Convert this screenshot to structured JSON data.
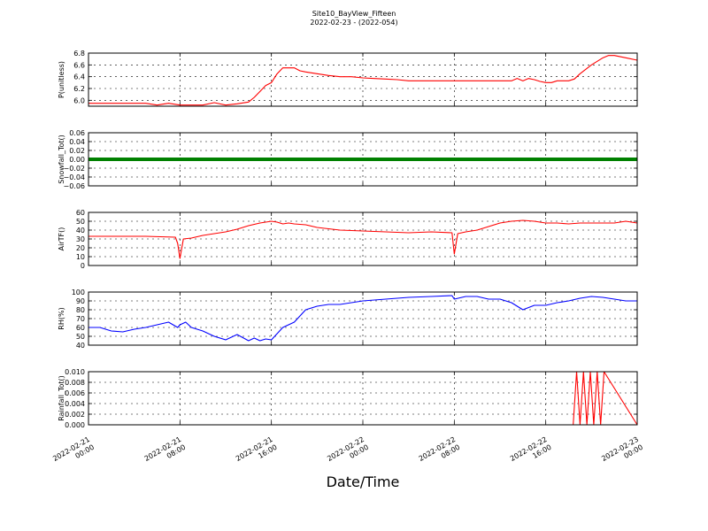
{
  "title_line1": "Site10_BayView_Fifteen",
  "title_line2": "2022-02-23 - (2022-054)",
  "xlabel": "Date/Time",
  "x_ticks": [
    {
      "l1": "2022-02-21",
      "l2": "00:00",
      "t": 0
    },
    {
      "l1": "2022-02-21",
      "l2": "08:00",
      "t": 8
    },
    {
      "l1": "2022-02-21",
      "l2": "16:00",
      "t": 16
    },
    {
      "l1": "2022-02-22",
      "l2": "00:00",
      "t": 24
    },
    {
      "l1": "2022-02-22",
      "l2": "08:00",
      "t": 32
    },
    {
      "l1": "2022-02-22",
      "l2": "16:00",
      "t": 40
    },
    {
      "l1": "2022-02-23",
      "l2": "00:00",
      "t": 48
    }
  ],
  "chart_data": [
    {
      "type": "line",
      "ylabel": "P(unitless)",
      "ylim": [
        5.9,
        6.8
      ],
      "yticks": [
        "6.8",
        "6.6",
        "6.4",
        "6.2",
        "6.0"
      ],
      "ytick_values": [
        6.8,
        6.6,
        6.4,
        6.2,
        6.0
      ],
      "grid": true,
      "series": [
        {
          "color": "#ff0000",
          "x": [
            0,
            3,
            5,
            6,
            7,
            8,
            10,
            11,
            12,
            13,
            14,
            14.5,
            15,
            15.5,
            16,
            16.5,
            17,
            18,
            18.5,
            19,
            20,
            21,
            22,
            23,
            24,
            25,
            26,
            27,
            28,
            30,
            32,
            34,
            36,
            37,
            37.5,
            38,
            38.5,
            39,
            39.5,
            40,
            40.5,
            41,
            42,
            42.5,
            43,
            44,
            45,
            45.5,
            46,
            47,
            48
          ],
          "y": [
            5.95,
            5.95,
            5.95,
            5.92,
            5.95,
            5.92,
            5.92,
            5.96,
            5.92,
            5.94,
            5.97,
            6.05,
            6.15,
            6.25,
            6.3,
            6.45,
            6.55,
            6.55,
            6.5,
            6.48,
            6.45,
            6.42,
            6.4,
            6.4,
            6.38,
            6.37,
            6.36,
            6.35,
            6.33,
            6.33,
            6.33,
            6.33,
            6.33,
            6.33,
            6.37,
            6.33,
            6.37,
            6.35,
            6.32,
            6.3,
            6.3,
            6.33,
            6.33,
            6.36,
            6.45,
            6.6,
            6.72,
            6.76,
            6.76,
            6.72,
            6.68
          ]
        }
      ]
    },
    {
      "type": "line",
      "ylabel": "Snowfall_Tot()",
      "ylim": [
        -0.06,
        0.06
      ],
      "yticks": [
        "0.06",
        "0.04",
        "0.02",
        "0.00",
        "−0.02",
        "−0.04",
        "−0.06"
      ],
      "ytick_values": [
        0.06,
        0.04,
        0.02,
        0.0,
        -0.02,
        -0.04,
        -0.06
      ],
      "grid": true,
      "series": [
        {
          "color": "#008000",
          "x": [
            0,
            48
          ],
          "y": [
            0,
            0
          ],
          "thick": true
        }
      ]
    },
    {
      "type": "line",
      "ylabel": "AirTF()",
      "ylim": [
        0,
        60
      ],
      "yticks": [
        "60",
        "50",
        "40",
        "30",
        "20",
        "10",
        "0"
      ],
      "ytick_values": [
        60,
        50,
        40,
        30,
        20,
        10,
        0
      ],
      "grid": true,
      "series": [
        {
          "color": "#ff0000",
          "x": [
            0,
            3,
            5,
            7.6,
            7.8,
            8.0,
            8.3,
            9,
            10,
            11,
            12,
            13,
            14,
            15,
            16,
            16.5,
            17,
            17.5,
            18,
            19,
            20,
            22,
            24,
            26,
            28,
            30,
            31.8,
            32.0,
            32.3,
            33,
            34,
            35,
            36,
            37,
            38,
            39,
            40,
            41,
            42,
            43,
            44,
            45,
            46,
            47,
            48
          ],
          "y": [
            33,
            33,
            33,
            32,
            25,
            8,
            30,
            31,
            34,
            36,
            38,
            41,
            45,
            48,
            50,
            49,
            47,
            48,
            47,
            46,
            43,
            40,
            39,
            38,
            37,
            38,
            37,
            13,
            36,
            38,
            40,
            44,
            48,
            50,
            51,
            50,
            48,
            48,
            47,
            48,
            48,
            48,
            48,
            50,
            48
          ]
        }
      ]
    },
    {
      "type": "line",
      "ylabel": "RH(%)",
      "ylim": [
        40,
        100
      ],
      "yticks": [
        "100",
        "90",
        "80",
        "70",
        "60",
        "50",
        "40"
      ],
      "ytick_values": [
        100,
        90,
        80,
        70,
        60,
        50,
        40
      ],
      "grid": true,
      "series": [
        {
          "color": "#0000ff",
          "x": [
            0,
            1,
            2,
            3,
            4,
            5,
            6,
            7,
            7.8,
            8,
            8.5,
            9,
            10,
            11,
            12,
            13,
            14,
            14.5,
            15,
            15.5,
            16,
            17,
            18,
            19,
            20,
            21,
            22,
            23,
            24,
            26,
            28,
            30,
            31.8,
            32,
            33,
            34,
            35,
            36,
            37,
            38,
            39,
            40,
            41,
            42,
            43,
            44,
            45,
            46,
            47,
            48
          ],
          "y": [
            60,
            60,
            56,
            55,
            58,
            60,
            63,
            66,
            60,
            63,
            66,
            60,
            56,
            50,
            46,
            52,
            45,
            48,
            45,
            47,
            46,
            60,
            66,
            80,
            84,
            86,
            86,
            88,
            90,
            92,
            94,
            95,
            96,
            92,
            95,
            95,
            92,
            92,
            88,
            80,
            85,
            85,
            88,
            90,
            93,
            95,
            94,
            92,
            90,
            90
          ]
        }
      ]
    },
    {
      "type": "line",
      "ylabel": "Rainfall_Tot()",
      "ylim": [
        0,
        0.01
      ],
      "yticks": [
        "0.010",
        "0.008",
        "0.006",
        "0.004",
        "0.002",
        "0.000"
      ],
      "ytick_values": [
        0.01,
        0.008,
        0.006,
        0.004,
        0.002,
        0.0
      ],
      "grid": true,
      "series": [
        {
          "color": "#ff0000",
          "x": [
            0,
            42.4,
            42.7,
            43.0,
            43.3,
            43.6,
            43.9,
            44.2,
            44.5,
            44.8,
            45.1,
            48
          ],
          "y": [
            0,
            0,
            0.01,
            0,
            0.01,
            0,
            0.01,
            0,
            0.01,
            0,
            0.01,
            0
          ]
        }
      ]
    }
  ]
}
